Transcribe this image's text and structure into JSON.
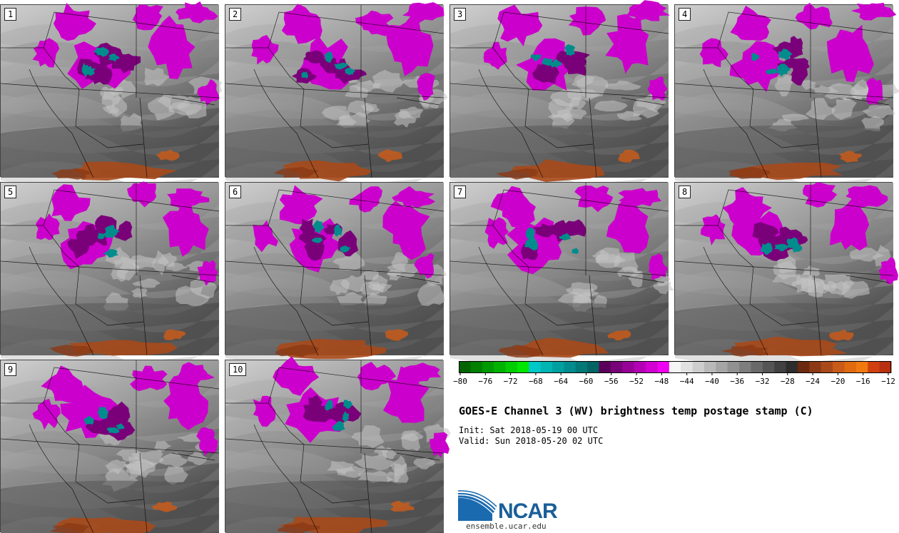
{
  "title": "GOES-E Channel 3 (WV) brightness temp postage stamp (C)",
  "init": "Init: Sat 2018-05-19 00 UTC",
  "valid": "Valid: Sun 2018-05-20 02 UTC",
  "logo": {
    "name": "NCAR",
    "url": "ensemble.ucar.edu"
  },
  "members": [
    "1",
    "2",
    "3",
    "4",
    "5",
    "6",
    "7",
    "8",
    "9",
    "10"
  ],
  "colorbar": {
    "ticks": [
      "−80",
      "−76",
      "−72",
      "−68",
      "−64",
      "−60",
      "−56",
      "−52",
      "−48",
      "−44",
      "−40",
      "−36",
      "−32",
      "−28",
      "−24",
      "−20",
      "−16",
      "−12"
    ],
    "colors": [
      "#006400",
      "#007f00",
      "#009900",
      "#00b300",
      "#00cc00",
      "#00e600",
      "#00c8c8",
      "#00b4b4",
      "#00a0a0",
      "#008c8c",
      "#007878",
      "#006464",
      "#5a005a",
      "#780078",
      "#960096",
      "#b400b4",
      "#d200d2",
      "#f000f0",
      "#f5f5f5",
      "#e1e1e1",
      "#cdcdcd",
      "#b9b9b9",
      "#a5a5a5",
      "#919191",
      "#7d7d7d",
      "#696969",
      "#555555",
      "#414141",
      "#2d2d2d",
      "#6b2a10",
      "#8b3a15",
      "#a8491a",
      "#c85a1a",
      "#e06a10",
      "#f07a10",
      "#d04010",
      "#b83010"
    ]
  }
}
